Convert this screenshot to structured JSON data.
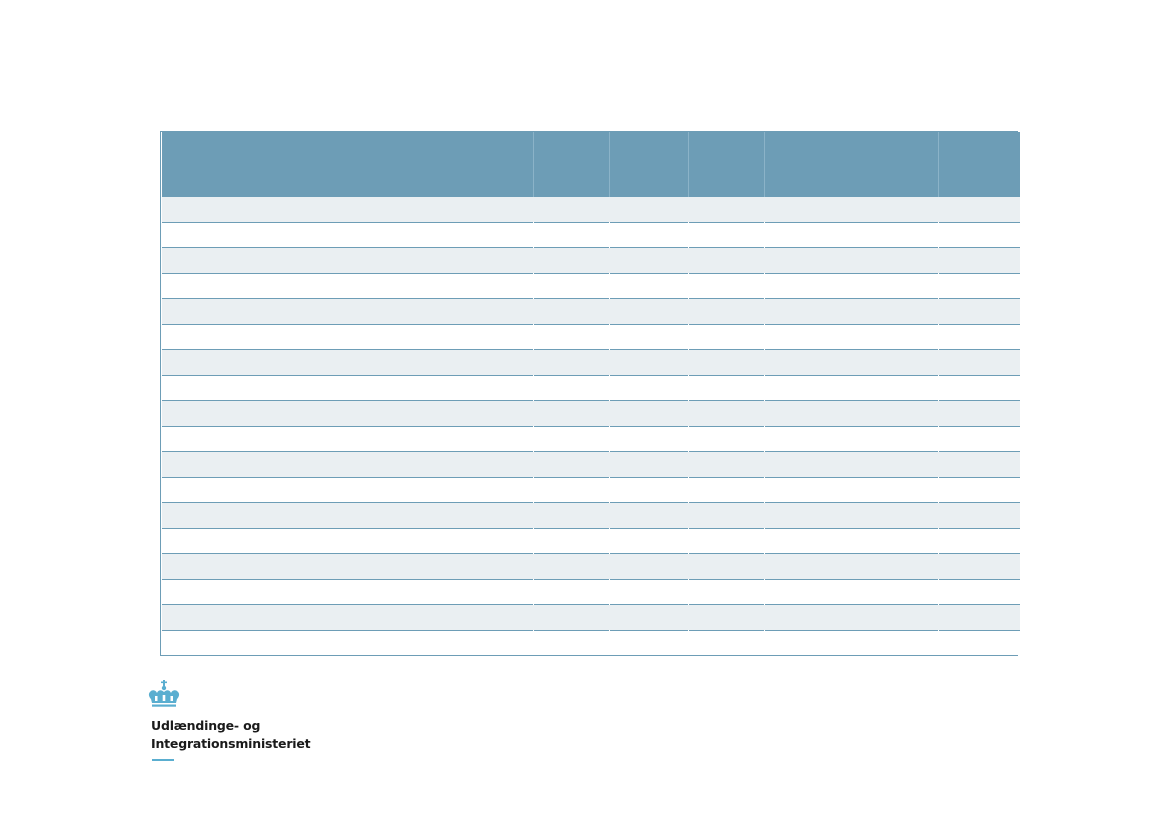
{
  "table": {
    "column_count": 6,
    "row_count": 18,
    "header_color": "#6d9db6",
    "stripe_color": "#eaeff2",
    "border_color": "#6d9db6"
  },
  "branding": {
    "logo_icon": "crown-icon",
    "name_line_1": "Udlændinge- og",
    "name_line_2": "Integrationsministeriet",
    "accent_color": "#5aaed0"
  }
}
